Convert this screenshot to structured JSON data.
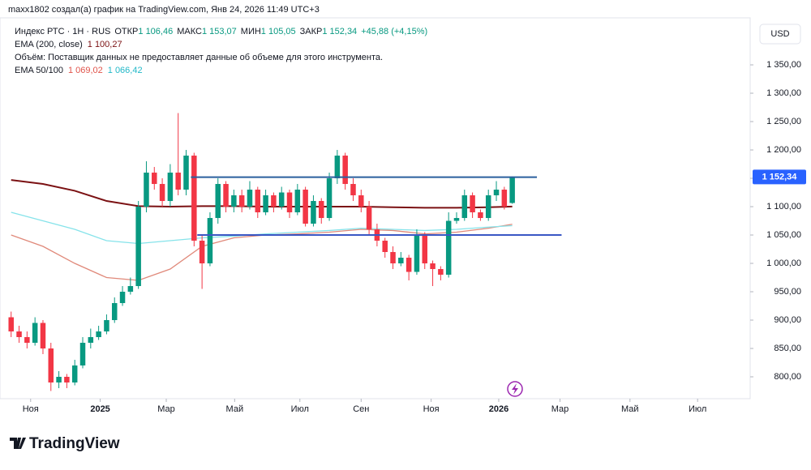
{
  "header": {
    "credit": "maxx1802 создал(а) график на TradingView.com, Янв 24, 2026 11:49 UTC+3",
    "symbol": "Индекс РТС · 1Н · RUS",
    "open_caption": "ОТКР",
    "open": "1 106,46",
    "high_caption": "МАКС",
    "high": "1 153,07",
    "low_caption": "МИН",
    "low": "1 105,05",
    "close_caption": "ЗАКР",
    "close": "1 152,34",
    "change": "+45,88 (+4,15%)",
    "ema200_caption": "EMA (200, close)",
    "ema200": "1 100,27",
    "volume_note": "Объём: Поставщик данных не предоставляет данные об объеме для этого инструмента.",
    "ema50_caption": "EMA 50/100",
    "ema50": "1 069,02",
    "ema100": "1 066,42",
    "currency": "USD",
    "logo": "TradingView"
  },
  "chart_data": {
    "type": "candlestick",
    "up_color": "#089981",
    "down_color": "#f23645",
    "open": [
      905,
      880,
      870,
      860,
      895,
      850,
      790,
      800,
      790,
      820,
      860,
      870,
      880,
      900,
      930,
      950,
      960,
      1100,
      1160,
      1140,
      1110,
      1160,
      1130,
      1190,
      1040,
      1000,
      1080,
      1140,
      1100,
      1120,
      1100,
      1130,
      1090,
      1120,
      1100,
      1125,
      1090,
      1130,
      1070,
      1110,
      1080,
      1150,
      1190,
      1140,
      1120,
      1100,
      1060,
      1040,
      1020,
      1000,
      1010,
      985,
      1050,
      1000,
      990,
      980,
      1075,
      1080,
      1120,
      1090,
      1080,
      1120,
      1130,
      1106.46
    ],
    "high": [
      915,
      890,
      880,
      905,
      900,
      860,
      810,
      805,
      830,
      870,
      885,
      890,
      910,
      940,
      960,
      975,
      1110,
      1180,
      1170,
      1150,
      1175,
      1265,
      1200,
      1195,
      1050,
      1090,
      1150,
      1145,
      1130,
      1130,
      1145,
      1135,
      1130,
      1125,
      1135,
      1130,
      1140,
      1135,
      1120,
      1115,
      1160,
      1200,
      1195,
      1150,
      1130,
      1110,
      1070,
      1045,
      1030,
      1020,
      1015,
      1060,
      1055,
      1005,
      995,
      1090,
      1090,
      1130,
      1125,
      1095,
      1130,
      1145,
      1135,
      1153.07
    ],
    "low": [
      870,
      860,
      850,
      855,
      840,
      775,
      780,
      780,
      785,
      815,
      850,
      865,
      875,
      895,
      925,
      945,
      955,
      1090,
      1130,
      1100,
      1100,
      1120,
      1120,
      1030,
      955,
      995,
      1070,
      1090,
      1090,
      1090,
      1095,
      1080,
      1085,
      1090,
      1095,
      1080,
      1085,
      1065,
      1065,
      1070,
      1075,
      1140,
      1130,
      1110,
      1090,
      1050,
      1030,
      1010,
      990,
      995,
      970,
      980,
      990,
      960,
      970,
      975,
      1070,
      1075,
      1080,
      1075,
      1075,
      1110,
      1095,
      1105.05
    ],
    "close": [
      880,
      870,
      860,
      895,
      850,
      790,
      800,
      790,
      820,
      860,
      870,
      880,
      900,
      930,
      950,
      960,
      1100,
      1160,
      1140,
      1110,
      1160,
      1130,
      1190,
      1040,
      1000,
      1080,
      1140,
      1100,
      1120,
      1100,
      1130,
      1090,
      1120,
      1100,
      1125,
      1090,
      1130,
      1070,
      1110,
      1080,
      1150,
      1190,
      1140,
      1120,
      1100,
      1060,
      1040,
      1020,
      1000,
      1010,
      985,
      1050,
      1000,
      990,
      980,
      1075,
      1080,
      1120,
      1090,
      1080,
      1120,
      1130,
      1100,
      1152.34
    ],
    "lines": [
      {
        "name": "EMA 200",
        "color": "#7b1113",
        "x": [
          0,
          4,
          8,
          12,
          16,
          20,
          24,
          28,
          32,
          36,
          40,
          44,
          48,
          52,
          56,
          60,
          63
        ],
        "values": [
          1147,
          1140,
          1128,
          1110,
          1101,
          1100,
          1101,
          1101,
          1100,
          1100,
          1100,
          1100,
          1099,
          1098,
          1098,
          1099,
          1100.27
        ]
      },
      {
        "name": "EMA 50",
        "color": "#e0897a",
        "x": [
          0,
          4,
          8,
          12,
          16,
          20,
          24,
          28,
          32,
          36,
          40,
          44,
          48,
          52,
          56,
          60,
          63
        ],
        "values": [
          1050,
          1030,
          1000,
          975,
          970,
          990,
          1030,
          1045,
          1050,
          1052,
          1055,
          1060,
          1058,
          1052,
          1055,
          1062,
          1069.02
        ]
      },
      {
        "name": "EMA 100",
        "color": "#86e3ea",
        "x": [
          0,
          4,
          8,
          12,
          16,
          20,
          24,
          28,
          32,
          36,
          40,
          44,
          48,
          52,
          56,
          60,
          63
        ],
        "values": [
          1090,
          1075,
          1060,
          1040,
          1035,
          1040,
          1045,
          1048,
          1052,
          1055,
          1058,
          1062,
          1060,
          1058,
          1060,
          1064,
          1066.42
        ]
      }
    ],
    "hlines": [
      {
        "value": 1152,
        "x": [
          22.6,
          66.1
        ],
        "color": "#2a5f9e"
      },
      {
        "value": 1050,
        "x": [
          23.4,
          69.2
        ],
        "color": "#3a57c4"
      }
    ],
    "last_price_label": "1 152,34",
    "xlim": [
      -1.4,
      92.4
    ],
    "ylim": [
      764.3,
      1432.9
    ],
    "xticks": [
      {
        "value": 2.45,
        "label": "Ноя"
      },
      {
        "value": 11.2,
        "label": "2025"
      },
      {
        "value": 19.5,
        "label": "Мар"
      },
      {
        "value": 28.1,
        "label": "Май"
      },
      {
        "value": 36.3,
        "label": "Июл"
      },
      {
        "value": 44,
        "label": "Сен"
      },
      {
        "value": 52.8,
        "label": "Ноя"
      },
      {
        "value": 61.3,
        "label": "2026"
      },
      {
        "value": 69,
        "label": "Мар"
      },
      {
        "value": 77.8,
        "label": "Май"
      },
      {
        "value": 86.3,
        "label": "Июл"
      }
    ],
    "yticks": [
      {
        "value": 800,
        "label": "800,00"
      },
      {
        "value": 850,
        "label": "850,00"
      },
      {
        "value": 900,
        "label": "900,00"
      },
      {
        "value": 950,
        "label": "950,00"
      },
      {
        "value": 1000,
        "label": "1 000,00"
      },
      {
        "value": 1050,
        "label": "1 050,00"
      },
      {
        "value": 1100,
        "label": "1 100,00"
      },
      {
        "value": 1150,
        "label": "1 150,00"
      },
      {
        "value": 1200,
        "label": "1 200,00"
      },
      {
        "value": 1250,
        "label": "1 250,00"
      },
      {
        "value": 1300,
        "label": "1 300,00"
      },
      {
        "value": 1350,
        "label": "1 350,00"
      }
    ]
  }
}
